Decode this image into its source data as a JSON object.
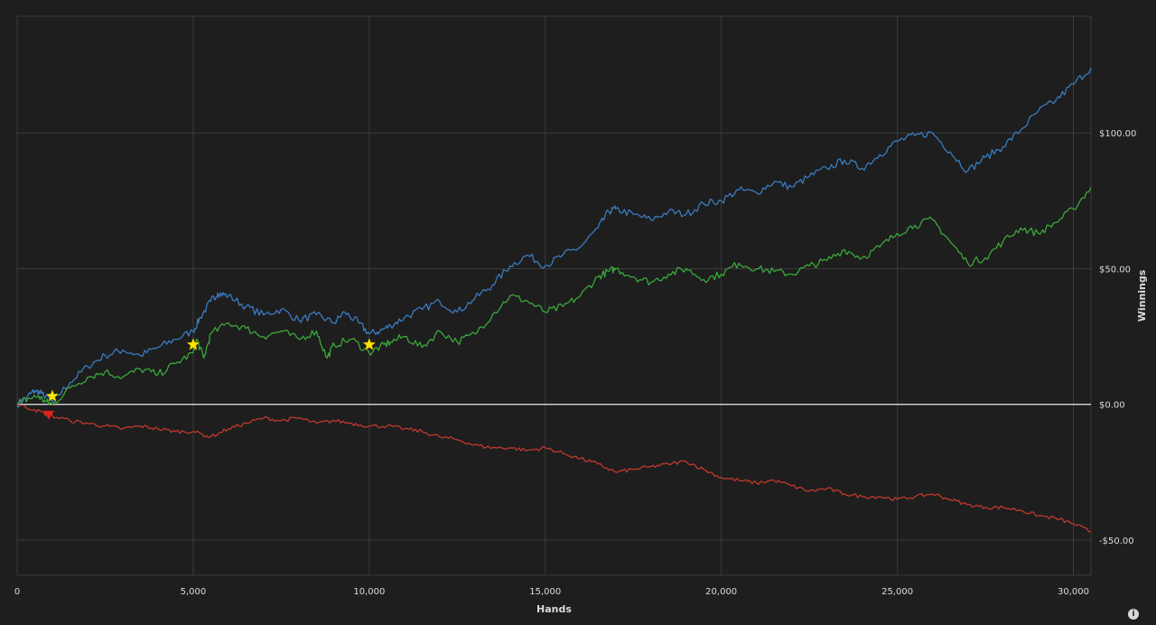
{
  "chart_data": {
    "type": "line",
    "title": "",
    "xlabel": "Hands",
    "ylabel": "Winnings",
    "xlim": [
      0,
      30500
    ],
    "ylim": [
      -63,
      143
    ],
    "x_ticks": [
      0,
      5000,
      10000,
      15000,
      20000,
      25000,
      30000
    ],
    "x_tick_labels": [
      "0",
      "5,000",
      "10,000",
      "15,000",
      "20,000",
      "25,000",
      "30,000"
    ],
    "y_ticks": [
      -50,
      0,
      50,
      100
    ],
    "y_tick_labels": [
      "-$50.00",
      "$0.00",
      "$50.00",
      "$100.00"
    ],
    "grid": true,
    "legend": "none",
    "series": [
      {
        "color": "#3a7bbf",
        "points": [
          [
            0,
            0
          ],
          [
            300,
            3
          ],
          [
            500,
            5
          ],
          [
            700,
            4
          ],
          [
            1000,
            1
          ],
          [
            1500,
            8
          ],
          [
            2000,
            14
          ],
          [
            2500,
            18
          ],
          [
            3000,
            20
          ],
          [
            3500,
            18
          ],
          [
            4000,
            21
          ],
          [
            4500,
            24
          ],
          [
            5000,
            27
          ],
          [
            5200,
            32
          ],
          [
            5500,
            38
          ],
          [
            5700,
            41
          ],
          [
            6000,
            40
          ],
          [
            6500,
            36
          ],
          [
            7000,
            33
          ],
          [
            7500,
            35
          ],
          [
            8000,
            31
          ],
          [
            8500,
            33
          ],
          [
            9000,
            30
          ],
          [
            9300,
            34
          ],
          [
            9700,
            30
          ],
          [
            10000,
            26
          ],
          [
            10300,
            27
          ],
          [
            10600,
            29
          ],
          [
            11000,
            32
          ],
          [
            11500,
            35
          ],
          [
            12000,
            38
          ],
          [
            12500,
            34
          ],
          [
            13000,
            39
          ],
          [
            13500,
            44
          ],
          [
            14000,
            51
          ],
          [
            14500,
            55
          ],
          [
            15000,
            51
          ],
          [
            15500,
            55
          ],
          [
            16000,
            58
          ],
          [
            16500,
            65
          ],
          [
            16800,
            71
          ],
          [
            17000,
            72
          ],
          [
            17500,
            70
          ],
          [
            18000,
            68
          ],
          [
            18500,
            71
          ],
          [
            19000,
            70
          ],
          [
            19500,
            74
          ],
          [
            20000,
            75
          ],
          [
            20500,
            79
          ],
          [
            21000,
            78
          ],
          [
            21500,
            82
          ],
          [
            22000,
            80
          ],
          [
            22500,
            84
          ],
          [
            23000,
            87
          ],
          [
            23500,
            90
          ],
          [
            24000,
            87
          ],
          [
            24500,
            92
          ],
          [
            25000,
            97
          ],
          [
            25500,
            99
          ],
          [
            26000,
            100
          ],
          [
            26500,
            93
          ],
          [
            27000,
            86
          ],
          [
            27500,
            91
          ],
          [
            28000,
            95
          ],
          [
            28500,
            101
          ],
          [
            29000,
            108
          ],
          [
            29500,
            112
          ],
          [
            30000,
            118
          ],
          [
            30500,
            124
          ]
        ]
      },
      {
        "color": "#3aa73a",
        "points": [
          [
            0,
            0
          ],
          [
            300,
            2
          ],
          [
            600,
            3
          ],
          [
            800,
            1
          ],
          [
            1000,
            0
          ],
          [
            1500,
            6
          ],
          [
            2000,
            10
          ],
          [
            2500,
            12
          ],
          [
            3000,
            10
          ],
          [
            3500,
            13
          ],
          [
            4000,
            11
          ],
          [
            4500,
            15
          ],
          [
            5000,
            19
          ],
          [
            5100,
            24
          ],
          [
            5300,
            17
          ],
          [
            5500,
            26
          ],
          [
            6000,
            30
          ],
          [
            6500,
            28
          ],
          [
            7000,
            25
          ],
          [
            7500,
            27
          ],
          [
            8000,
            24
          ],
          [
            8500,
            27
          ],
          [
            8800,
            17
          ],
          [
            9000,
            22
          ],
          [
            9500,
            24
          ],
          [
            10000,
            19
          ],
          [
            10300,
            21
          ],
          [
            10600,
            23
          ],
          [
            11000,
            25
          ],
          [
            11500,
            21
          ],
          [
            12000,
            27
          ],
          [
            12500,
            23
          ],
          [
            13000,
            26
          ],
          [
            13500,
            33
          ],
          [
            14000,
            40
          ],
          [
            14500,
            38
          ],
          [
            15000,
            34
          ],
          [
            15500,
            36
          ],
          [
            16000,
            40
          ],
          [
            16500,
            47
          ],
          [
            16800,
            49
          ],
          [
            17000,
            50
          ],
          [
            17500,
            47
          ],
          [
            18000,
            45
          ],
          [
            18500,
            48
          ],
          [
            19000,
            50
          ],
          [
            19500,
            46
          ],
          [
            20000,
            48
          ],
          [
            20500,
            52
          ],
          [
            21000,
            50
          ],
          [
            21500,
            49
          ],
          [
            22000,
            48
          ],
          [
            22500,
            51
          ],
          [
            23000,
            53
          ],
          [
            23500,
            57
          ],
          [
            24000,
            54
          ],
          [
            24500,
            58
          ],
          [
            25000,
            63
          ],
          [
            25500,
            66
          ],
          [
            26000,
            68
          ],
          [
            26500,
            60
          ],
          [
            27000,
            52
          ],
          [
            27500,
            54
          ],
          [
            28000,
            60
          ],
          [
            28500,
            65
          ],
          [
            29000,
            63
          ],
          [
            29500,
            67
          ],
          [
            30000,
            72
          ],
          [
            30500,
            80
          ]
        ]
      },
      {
        "color": "#c0392b",
        "points": [
          [
            0,
            0
          ],
          [
            500,
            -2
          ],
          [
            900,
            -4
          ],
          [
            1500,
            -6
          ],
          [
            2000,
            -7
          ],
          [
            2500,
            -8
          ],
          [
            3000,
            -9
          ],
          [
            3500,
            -8
          ],
          [
            4000,
            -9
          ],
          [
            4500,
            -10
          ],
          [
            5000,
            -10
          ],
          [
            5500,
            -12
          ],
          [
            6000,
            -9
          ],
          [
            6500,
            -7
          ],
          [
            7000,
            -5
          ],
          [
            7500,
            -6
          ],
          [
            8000,
            -5
          ],
          [
            8500,
            -7
          ],
          [
            9000,
            -6
          ],
          [
            9500,
            -7
          ],
          [
            10000,
            -8
          ],
          [
            10500,
            -8
          ],
          [
            11000,
            -9
          ],
          [
            11500,
            -10
          ],
          [
            12000,
            -12
          ],
          [
            12500,
            -13
          ],
          [
            13000,
            -15
          ],
          [
            13500,
            -16
          ],
          [
            14000,
            -16
          ],
          [
            14500,
            -17
          ],
          [
            15000,
            -16
          ],
          [
            15500,
            -18
          ],
          [
            16000,
            -20
          ],
          [
            16500,
            -22
          ],
          [
            17000,
            -25
          ],
          [
            17500,
            -24
          ],
          [
            18000,
            -23
          ],
          [
            18500,
            -22
          ],
          [
            19000,
            -21
          ],
          [
            19500,
            -24
          ],
          [
            20000,
            -27
          ],
          [
            20500,
            -28
          ],
          [
            21000,
            -29
          ],
          [
            21500,
            -28
          ],
          [
            22000,
            -30
          ],
          [
            22500,
            -32
          ],
          [
            23000,
            -31
          ],
          [
            23500,
            -33
          ],
          [
            24000,
            -34
          ],
          [
            24500,
            -34
          ],
          [
            25000,
            -35
          ],
          [
            25500,
            -34
          ],
          [
            26000,
            -33
          ],
          [
            26500,
            -35
          ],
          [
            27000,
            -37
          ],
          [
            27500,
            -38
          ],
          [
            28000,
            -38
          ],
          [
            28500,
            -39
          ],
          [
            29000,
            -41
          ],
          [
            29500,
            -42
          ],
          [
            30000,
            -44
          ],
          [
            30500,
            -47
          ]
        ]
      }
    ],
    "markers": [
      {
        "shape": "star",
        "color": "#ffe600",
        "x": 1000,
        "y": 3
      },
      {
        "shape": "star",
        "color": "#ffe600",
        "x": 5000,
        "y": 22
      },
      {
        "shape": "star",
        "color": "#ffe600",
        "x": 10000,
        "y": 22
      },
      {
        "shape": "triangle-down",
        "color": "#e02020",
        "x": 900,
        "y": -4
      }
    ]
  },
  "colors": {
    "background": "#1e1e1e",
    "grid": "#3a3a3a",
    "zero_line": "#d8d8d8",
    "text": "#dcdcdc"
  },
  "info_icon": {
    "name": "info-icon",
    "glyph": "i"
  }
}
